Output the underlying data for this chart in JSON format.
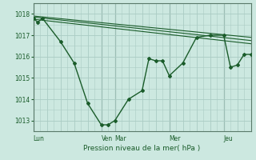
{
  "background_color": "#cce8e0",
  "grid_color": "#aaccC4",
  "line_color": "#1a5c2a",
  "spine_color": "#5a7a6a",
  "title": "Pression niveau de la mer( hPa )",
  "ylim": [
    1012.5,
    1018.5
  ],
  "yticks": [
    1013,
    1014,
    1015,
    1016,
    1017,
    1018
  ],
  "day_labels": [
    "Lun",
    "Ven",
    "Mar",
    "Mer",
    "Jeu"
  ],
  "day_positions": [
    0,
    60,
    72,
    120,
    168
  ],
  "total_hours": 192,
  "series_main": {
    "x": [
      0,
      4,
      8,
      24,
      36,
      48,
      60,
      66,
      72,
      84,
      96,
      102,
      108,
      114,
      120,
      132,
      144,
      156,
      168,
      174,
      180,
      186,
      192
    ],
    "y": [
      1017.8,
      1017.6,
      1017.8,
      1016.7,
      1015.7,
      1013.8,
      1012.8,
      1012.8,
      1013.0,
      1014.0,
      1014.4,
      1015.9,
      1015.8,
      1015.8,
      1015.1,
      1015.7,
      1016.9,
      1017.0,
      1017.0,
      1015.5,
      1015.6,
      1016.1,
      1016.1
    ]
  },
  "series_upper1": {
    "x": [
      0,
      192
    ],
    "y": [
      1017.9,
      1016.9
    ]
  },
  "series_upper2": {
    "x": [
      0,
      192
    ],
    "y": [
      1017.85,
      1016.75
    ]
  },
  "series_upper3": {
    "x": [
      0,
      192
    ],
    "y": [
      1017.75,
      1016.6
    ]
  },
  "figsize": [
    3.2,
    2.0
  ],
  "dpi": 100
}
